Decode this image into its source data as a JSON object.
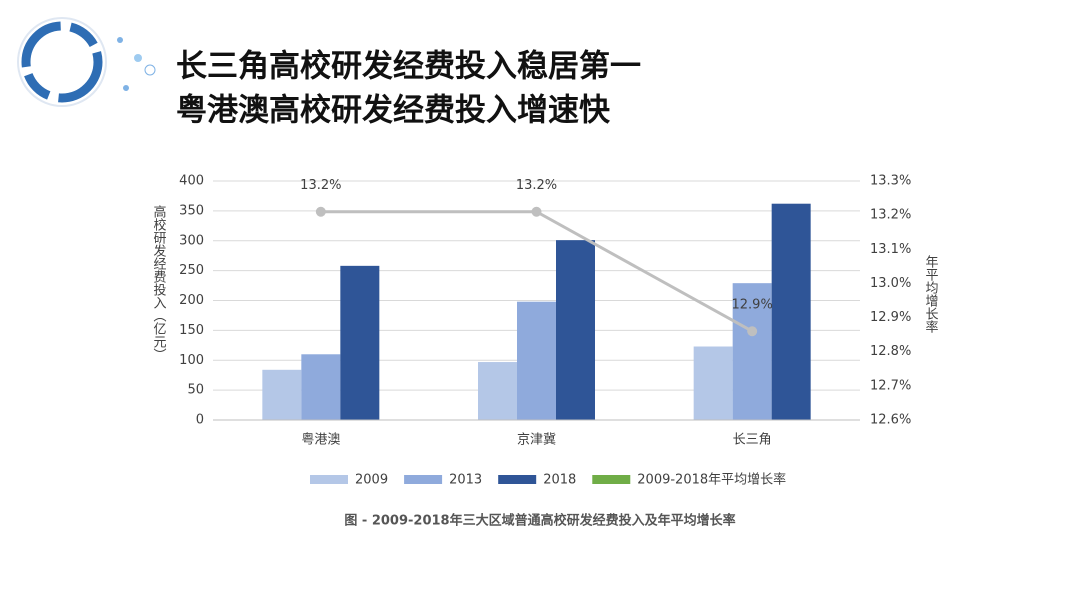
{
  "chart_data": {
    "type": "bar_line",
    "titles": [
      "长三角高校研发经费投入稳居第一",
      "粤港澳高校研发经费投入增速快"
    ],
    "caption": "图 - 2009-2018年三大区域普通高校研发经费投入及年平均增长率",
    "y_label": "高校研发经费投入（亿元）",
    "y2_label": "年平均增长率",
    "categories": [
      "粤港澳",
      "京津冀",
      "长三角"
    ],
    "series": [
      {
        "name": "2009",
        "color": "#b4c7e7",
        "values": [
          84,
          97,
          123
        ]
      },
      {
        "name": "2013",
        "color": "#8faadc",
        "values": [
          110,
          198,
          229
        ]
      },
      {
        "name": "2018",
        "color": "#2f5597",
        "values": [
          258,
          301,
          362
        ]
      },
      {
        "name": "2009-2018年平均增长率",
        "color": "#bfbfbf",
        "legend_color": "#70ad47",
        "axis": "y2",
        "values": [
          13.21,
          13.21,
          12.86
        ],
        "value_labels": [
          "13.2%",
          "13.2%",
          "12.9%"
        ]
      }
    ],
    "ylim": [
      0,
      400
    ],
    "yticks": [
      0,
      50,
      100,
      150,
      200,
      250,
      300,
      350,
      400
    ],
    "y2lim": [
      12.6,
      13.3
    ],
    "y2ticks": [
      {
        "value": 12.6,
        "label": "12.6%"
      },
      {
        "value": 12.7,
        "label": "12.7%"
      },
      {
        "value": 12.8,
        "label": "12.8%"
      },
      {
        "value": 12.9,
        "label": "12.9%"
      },
      {
        "value": 13.0,
        "label": "13.0%"
      },
      {
        "value": 13.1,
        "label": "13.1%"
      },
      {
        "value": 13.2,
        "label": "13.2%"
      },
      {
        "value": 13.3,
        "label": "13.3%"
      }
    ],
    "grid": true
  }
}
